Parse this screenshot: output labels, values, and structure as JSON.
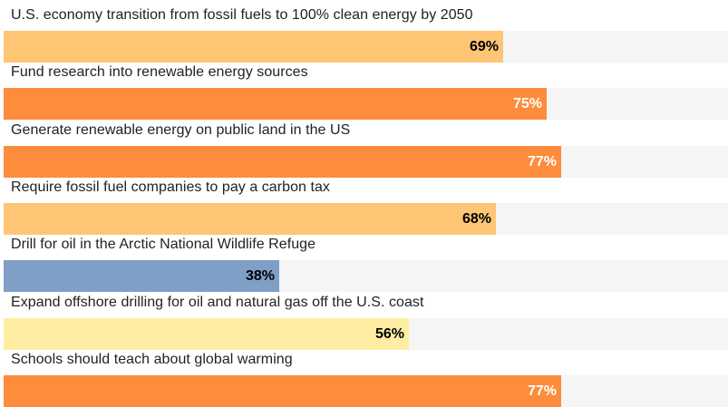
{
  "chart_data": {
    "type": "bar",
    "orientation": "horizontal",
    "title": "",
    "xlabel": "",
    "ylabel": "",
    "xlim": [
      0,
      100
    ],
    "value_suffix": "%",
    "categories": [
      "U.S. economy transition from fossil fuels to 100% clean energy by 2050",
      "Fund research into renewable energy sources",
      "Generate renewable energy on public land in the US",
      "Require fossil fuel companies to pay a carbon tax",
      "Drill for oil in the Arctic National Wildlife Refuge",
      "Expand offshore drilling for oil and natural gas off the U.S. coast",
      "Schools should teach about global warming"
    ],
    "values": [
      69,
      75,
      77,
      68,
      38,
      56,
      77
    ],
    "value_labels": [
      "69%",
      "75%",
      "77%",
      "68%",
      "38%",
      "56%",
      "77%"
    ],
    "bar_colors": [
      "#fdc574",
      "#fd8c3c",
      "#fd8c3c",
      "#fdc574",
      "#7f9fc6",
      "#feeda2",
      "#fd8c3c"
    ],
    "label_colors": [
      "#000000",
      "#ffffff",
      "#ffffff",
      "#000000",
      "#000000",
      "#000000",
      "#ffffff"
    ],
    "track_color": "#f5f5f5",
    "grid": false,
    "legend": "none"
  }
}
